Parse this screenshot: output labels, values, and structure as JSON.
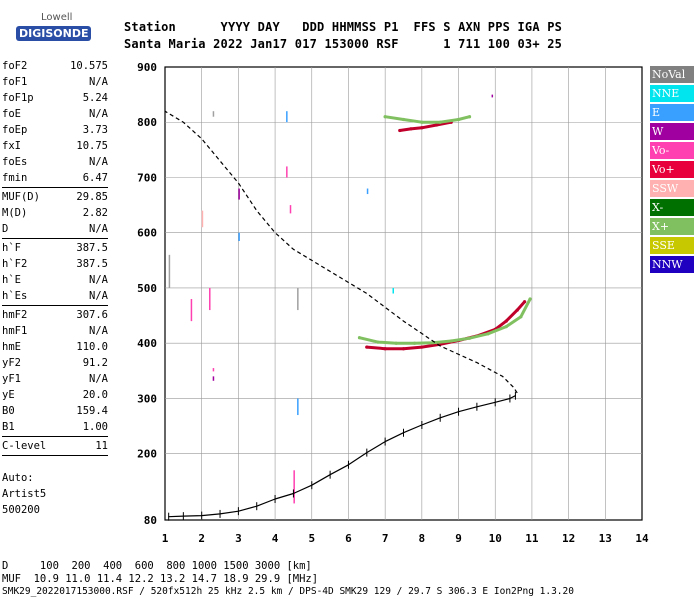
{
  "logo": {
    "line1": "Lowell",
    "line2": "DIGISONDE"
  },
  "header": {
    "row1": "Station      YYYY DAY   DDD HHMMSS P1  FFS S AXN PPS IGA PS",
    "row2": "Santa Maria 2022 Jan17 017 153000 RSF      1 711 100 03+ 25"
  },
  "params": [
    [
      {
        "k": "foF2",
        "v": "10.575"
      },
      {
        "k": "foF1",
        "v": "N/A"
      },
      {
        "k": "foF1p",
        "v": "5.24"
      },
      {
        "k": "foE",
        "v": "N/A"
      },
      {
        "k": "foEp",
        "v": "3.73"
      },
      {
        "k": "fxI",
        "v": "10.75"
      },
      {
        "k": "foEs",
        "v": "N/A"
      },
      {
        "k": "fmin",
        "v": "6.47"
      }
    ],
    [
      {
        "k": "MUF(D)",
        "v": "29.85"
      },
      {
        "k": "M(D)",
        "v": "2.82"
      },
      {
        "k": "D",
        "v": "N/A"
      }
    ],
    [
      {
        "k": "h`F",
        "v": "387.5"
      },
      {
        "k": "h`F2",
        "v": "387.5"
      },
      {
        "k": "h`E",
        "v": "N/A"
      },
      {
        "k": "h`Es",
        "v": "N/A"
      }
    ],
    [
      {
        "k": "hmF2",
        "v": "307.6"
      },
      {
        "k": "hmF1",
        "v": "N/A"
      },
      {
        "k": "hmE",
        "v": "110.0"
      },
      {
        "k": "yF2",
        "v": "91.2"
      },
      {
        "k": "yF1",
        "v": "N/A"
      },
      {
        "k": "yE",
        "v": "20.0"
      },
      {
        "k": "B0",
        "v": "159.4"
      },
      {
        "k": "B1",
        "v": "1.00"
      }
    ],
    [
      {
        "k": "C-level",
        "v": "11"
      }
    ]
  ],
  "auto": {
    "line1": "Auto:",
    "line2": "Artist5",
    "line3": "500200"
  },
  "legend": [
    {
      "label": "NoVal",
      "color": "#808080"
    },
    {
      "label": "NNE",
      "color": "#00e5ee"
    },
    {
      "label": "E",
      "color": "#3aa0ff"
    },
    {
      "label": "W",
      "color": "#a000a0"
    },
    {
      "label": "Vo-",
      "color": "#ff40b0"
    },
    {
      "label": "Vo+",
      "color": "#e8003c"
    },
    {
      "label": "SSW",
      "color": "#ffb0b0"
    },
    {
      "label": "X-",
      "color": "#007000"
    },
    {
      "label": "X+",
      "color": "#80c060"
    },
    {
      "label": "SSE",
      "color": "#c8c800"
    },
    {
      "label": "NNW",
      "color": "#2000c0"
    }
  ],
  "footer": {
    "row1": "D     100  200  400  600  800 1000 1500 3000 [km]",
    "row2": "MUF  10.9 11.0 11.4 12.2 13.2 14.7 18.9 29.9 [MHz]",
    "row3": "SMK29_2022017153000.RSF / 520fx512h 25 kHz 2.5 km / DPS-4D SMK29 129 / 29.7 S 306.3 E Ion2Png 1.3.20"
  },
  "chart_data": {
    "type": "scatter",
    "xlim": [
      1,
      14
    ],
    "ylim": [
      80,
      900
    ],
    "x_ticks": [
      1,
      2,
      3,
      4,
      5,
      6,
      7,
      8,
      9,
      10,
      11,
      12,
      13,
      14
    ],
    "y_ticks": [
      80,
      200,
      300,
      400,
      500,
      600,
      700,
      800,
      900
    ],
    "grid": true,
    "series": [
      {
        "name": "Vo+",
        "color": "#c0002a",
        "points": [
          [
            6.5,
            393
          ],
          [
            7.0,
            390
          ],
          [
            7.5,
            390
          ],
          [
            8.0,
            393
          ],
          [
            8.5,
            398
          ],
          [
            9.0,
            405
          ],
          [
            9.5,
            413
          ],
          [
            10.0,
            425
          ],
          [
            10.3,
            440
          ],
          [
            10.6,
            460
          ],
          [
            10.8,
            475
          ]
        ]
      },
      {
        "name": "X+",
        "color": "#80c060",
        "points": [
          [
            6.3,
            410
          ],
          [
            6.8,
            402
          ],
          [
            7.3,
            400
          ],
          [
            7.8,
            400
          ],
          [
            8.3,
            401
          ],
          [
            8.8,
            404
          ],
          [
            9.3,
            409
          ],
          [
            9.8,
            417
          ],
          [
            10.3,
            430
          ],
          [
            10.7,
            448
          ],
          [
            10.95,
            480
          ]
        ]
      },
      {
        "name": "Vo+",
        "color": "#c0002a",
        "points": [
          [
            7.4,
            785
          ],
          [
            7.7,
            788
          ],
          [
            8.0,
            790
          ],
          [
            8.4,
            795
          ],
          [
            8.8,
            800
          ]
        ]
      },
      {
        "name": "X+",
        "color": "#80c060",
        "points": [
          [
            7.0,
            810
          ],
          [
            7.5,
            805
          ],
          [
            8.0,
            800
          ],
          [
            8.5,
            800
          ],
          [
            9.0,
            805
          ],
          [
            9.3,
            810
          ]
        ]
      },
      {
        "name": "",
        "color": "#000000",
        "points": [
          [
            1.1,
            86
          ],
          [
            1.5,
            87
          ],
          [
            2.0,
            88
          ],
          [
            2.5,
            91
          ],
          [
            3.0,
            96
          ],
          [
            3.5,
            105
          ],
          [
            4.0,
            118
          ],
          [
            4.5,
            128
          ],
          [
            5.0,
            143
          ],
          [
            5.5,
            162
          ],
          [
            6.0,
            180
          ],
          [
            6.5,
            202
          ],
          [
            7.0,
            222
          ],
          [
            7.5,
            238
          ],
          [
            8.0,
            252
          ],
          [
            8.5,
            265
          ],
          [
            9.0,
            276
          ],
          [
            9.5,
            285
          ],
          [
            10.0,
            293
          ],
          [
            10.4,
            300
          ],
          [
            10.55,
            305
          ]
        ]
      }
    ],
    "model_profile": {
      "name": "",
      "points": [
        [
          10.6,
          310
        ],
        [
          10.5,
          320
        ],
        [
          10.2,
          340
        ],
        [
          9.5,
          365
        ],
        [
          8.5,
          395
        ],
        [
          7.5,
          440
        ],
        [
          6.5,
          490
        ],
        [
          5.5,
          530
        ],
        [
          4.5,
          570
        ],
        [
          4.0,
          600
        ],
        [
          3.5,
          640
        ],
        [
          3.0,
          690
        ],
        [
          2.5,
          730
        ],
        [
          2.0,
          770
        ],
        [
          1.5,
          800
        ],
        [
          1.0,
          820
        ]
      ]
    }
  }
}
